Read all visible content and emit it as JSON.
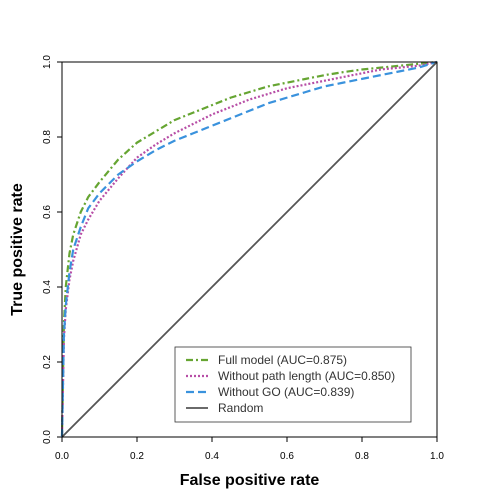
{
  "chart_data": {
    "type": "line",
    "title": "",
    "xlabel": "False positive rate",
    "ylabel": "True positive rate",
    "xlim": [
      0,
      1
    ],
    "ylim": [
      0,
      1
    ],
    "x_ticks": [
      "0.0",
      "0.2",
      "0.4",
      "0.6",
      "0.8",
      "1.0"
    ],
    "y_ticks": [
      "0.0",
      "0.2",
      "0.4",
      "0.6",
      "0.8",
      "1.0"
    ],
    "grid": false,
    "legend_position": "bottom-right",
    "series": [
      {
        "name": "Full model (AUC=0.875)",
        "color": "#66a532",
        "dash": "dash-dot",
        "x": [
          0,
          0.005,
          0.01,
          0.02,
          0.03,
          0.05,
          0.07,
          0.1,
          0.15,
          0.2,
          0.25,
          0.3,
          0.35,
          0.4,
          0.45,
          0.5,
          0.55,
          0.6,
          0.65,
          0.7,
          0.75,
          0.8,
          0.85,
          0.9,
          0.95,
          1.0
        ],
        "y": [
          0,
          0.3,
          0.4,
          0.49,
          0.54,
          0.6,
          0.64,
          0.68,
          0.74,
          0.785,
          0.815,
          0.845,
          0.865,
          0.885,
          0.905,
          0.92,
          0.935,
          0.945,
          0.955,
          0.965,
          0.973,
          0.98,
          0.985,
          0.99,
          0.995,
          1.0
        ]
      },
      {
        "name": "Without path length (AUC=0.850)",
        "color": "#b74ea6",
        "dash": "dotted",
        "x": [
          0,
          0.005,
          0.01,
          0.02,
          0.03,
          0.05,
          0.07,
          0.1,
          0.15,
          0.2,
          0.25,
          0.3,
          0.35,
          0.4,
          0.45,
          0.5,
          0.55,
          0.6,
          0.65,
          0.7,
          0.75,
          0.8,
          0.85,
          0.9,
          0.95,
          1.0
        ],
        "y": [
          0,
          0.26,
          0.34,
          0.42,
          0.47,
          0.54,
          0.58,
          0.63,
          0.69,
          0.745,
          0.78,
          0.81,
          0.835,
          0.86,
          0.88,
          0.9,
          0.915,
          0.93,
          0.94,
          0.95,
          0.96,
          0.97,
          0.98,
          0.985,
          0.99,
          1.0
        ]
      },
      {
        "name": "Without GO (AUC=0.839)",
        "color": "#3a92dd",
        "dash": "dashed",
        "x": [
          0,
          0.005,
          0.01,
          0.02,
          0.03,
          0.05,
          0.07,
          0.1,
          0.15,
          0.2,
          0.25,
          0.3,
          0.35,
          0.4,
          0.45,
          0.5,
          0.55,
          0.6,
          0.65,
          0.7,
          0.75,
          0.8,
          0.85,
          0.9,
          0.95,
          1.0
        ],
        "y": [
          0,
          0.27,
          0.35,
          0.44,
          0.5,
          0.56,
          0.61,
          0.65,
          0.7,
          0.735,
          0.765,
          0.79,
          0.81,
          0.83,
          0.85,
          0.87,
          0.89,
          0.905,
          0.92,
          0.935,
          0.945,
          0.955,
          0.965,
          0.975,
          0.985,
          1.0
        ]
      },
      {
        "name": "Random",
        "color": "#555555",
        "dash": "solid",
        "x": [
          0,
          1
        ],
        "y": [
          0,
          1
        ]
      }
    ]
  }
}
